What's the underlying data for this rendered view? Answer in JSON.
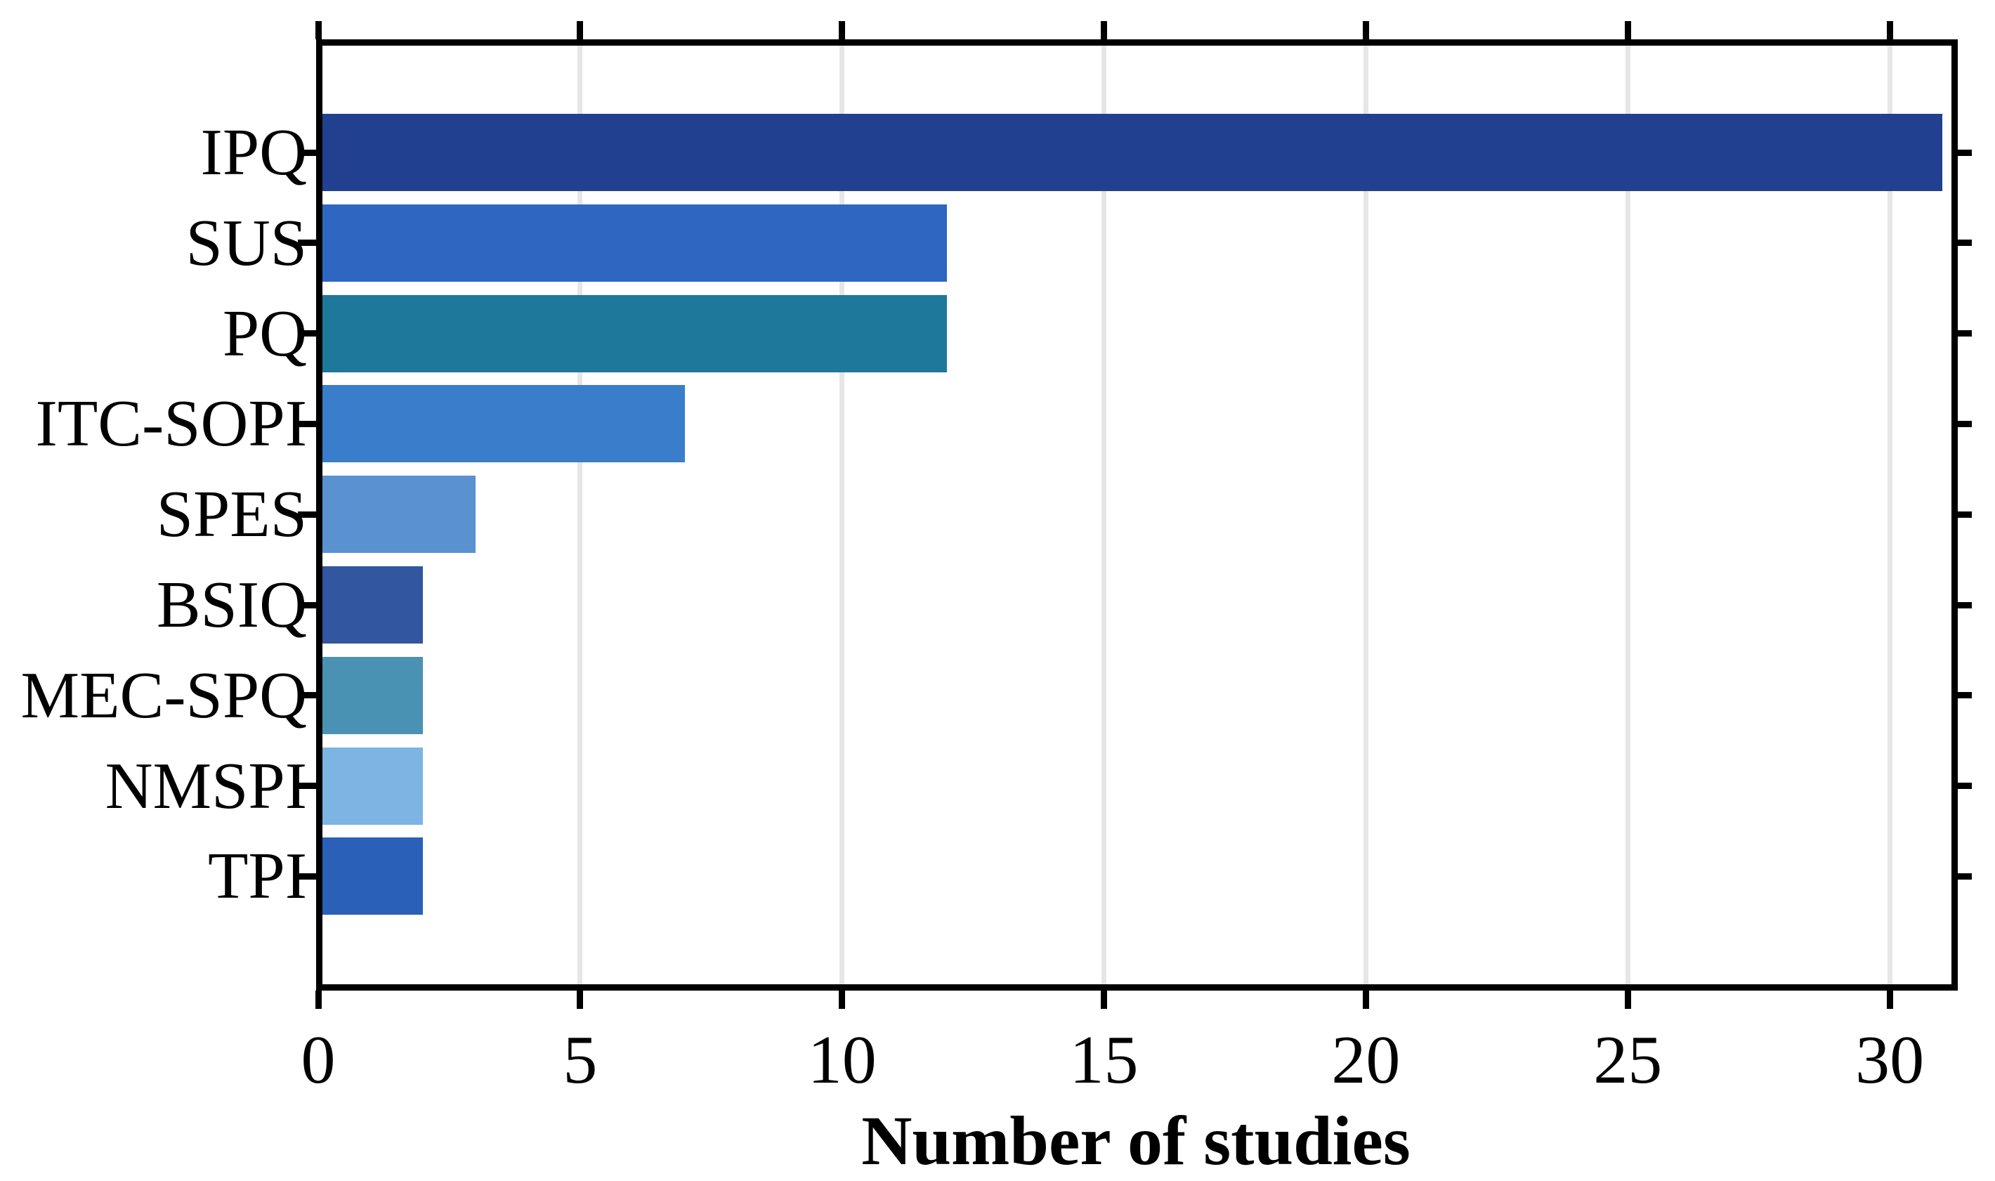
{
  "chart_data": {
    "type": "bar",
    "orientation": "horizontal",
    "title": "",
    "xlabel": "Number of studies",
    "ylabel": "",
    "categories": [
      "IPQ",
      "SUS",
      "PQ",
      "ITC-SOPI",
      "SPES",
      "BSIQ",
      "MEC-SPQ",
      "NMSPI",
      "TPI"
    ],
    "values": [
      31,
      12,
      12,
      7,
      3,
      2,
      2,
      2,
      2
    ],
    "bar_colors": [
      "#21408F",
      "#2F66C1",
      "#1E789B",
      "#3A7DCA",
      "#5991D1",
      "#32569F",
      "#4A92B3",
      "#7CB4E3",
      "#2B60B8"
    ],
    "x_ticks": [
      0,
      5,
      10,
      15,
      20,
      25,
      30
    ],
    "xlim": [
      0,
      31.2
    ],
    "grid": "vertical",
    "grid_color": "#e6e6e6",
    "axis_color": "#000000",
    "background_color": "#ffffff",
    "legend": "none"
  }
}
